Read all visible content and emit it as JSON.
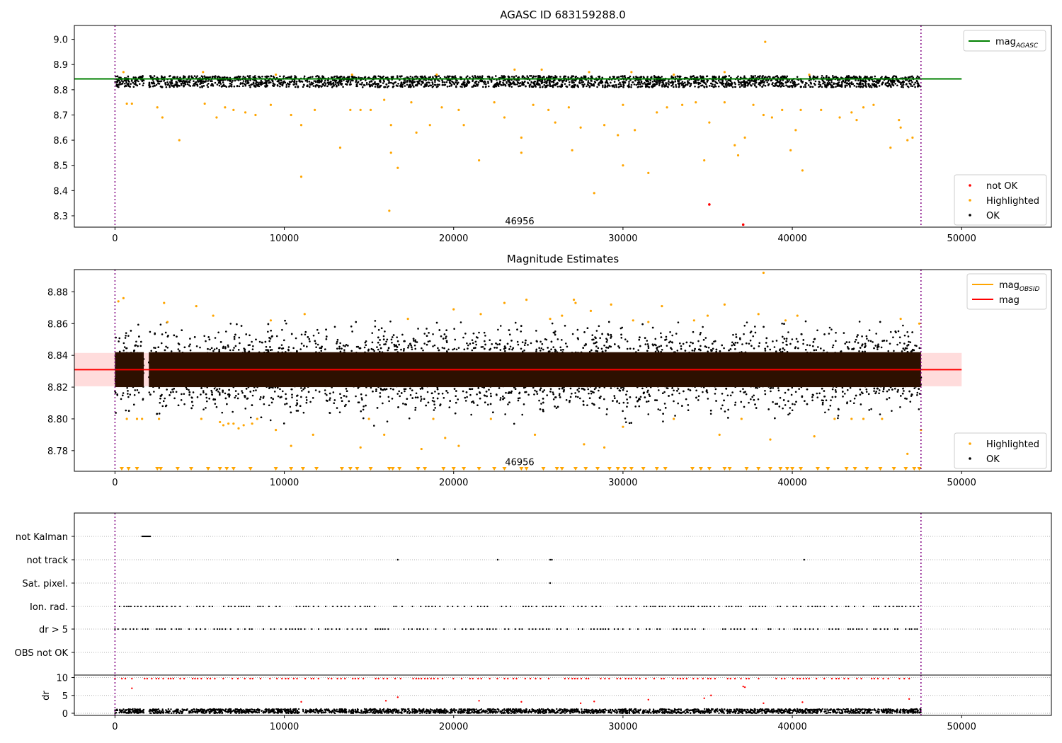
{
  "chart_data": [
    {
      "type": "scatter",
      "title": "AGASC ID 683159288.0",
      "xlim": [
        -2400,
        55300
      ],
      "ylim": [
        8.255,
        9.055
      ],
      "xticks": [
        0,
        10000,
        20000,
        30000,
        40000,
        50000
      ],
      "yticks": [
        8.3,
        8.4,
        8.5,
        8.6,
        8.7,
        8.8,
        8.9,
        9.0
      ],
      "ytick_labels": [
        "8.3",
        "8.4",
        "8.5",
        "8.6",
        "8.7",
        "8.8",
        "8.9",
        "9.0"
      ],
      "annotation": {
        "text": "46956",
        "x": 23900,
        "y": 8.28
      },
      "vlines": [
        0,
        47600
      ],
      "reference_line": {
        "label": "mag",
        "label_sub": "AGASC",
        "y": 8.843,
        "x": [
          -2400,
          50000
        ],
        "color": "#008000"
      },
      "ok_band": {
        "ymin": 8.81,
        "ymax": 8.855,
        "x": [
          0,
          47600
        ],
        "gap": [
          1700,
          2000
        ]
      },
      "highlighted_points": [
        [
          700,
          8.745
        ],
        [
          1000,
          8.745
        ],
        [
          2500,
          8.73
        ],
        [
          2800,
          8.69
        ],
        [
          3800,
          8.6
        ],
        [
          5300,
          8.745
        ],
        [
          6000,
          8.69
        ],
        [
          6500,
          8.73
        ],
        [
          7000,
          8.72
        ],
        [
          7700,
          8.71
        ],
        [
          8300,
          8.7
        ],
        [
          9200,
          8.74
        ],
        [
          10400,
          8.7
        ],
        [
          11000,
          8.66
        ],
        [
          11000,
          8.455
        ],
        [
          11800,
          8.72
        ],
        [
          13300,
          8.57
        ],
        [
          13900,
          8.72
        ],
        [
          14500,
          8.72
        ],
        [
          15100,
          8.72
        ],
        [
          15900,
          8.76
        ],
        [
          16200,
          8.32
        ],
        [
          16300,
          8.66
        ],
        [
          16300,
          8.55
        ],
        [
          16700,
          8.49
        ],
        [
          17500,
          8.75
        ],
        [
          17800,
          8.63
        ],
        [
          18600,
          8.66
        ],
        [
          19300,
          8.73
        ],
        [
          20300,
          8.72
        ],
        [
          20600,
          8.66
        ],
        [
          21500,
          8.52
        ],
        [
          22400,
          8.75
        ],
        [
          23000,
          8.69
        ],
        [
          24000,
          8.61
        ],
        [
          24000,
          8.55
        ],
        [
          24700,
          8.74
        ],
        [
          25600,
          8.72
        ],
        [
          26000,
          8.67
        ],
        [
          26800,
          8.73
        ],
        [
          27000,
          8.56
        ],
        [
          27500,
          8.65
        ],
        [
          28300,
          8.39
        ],
        [
          28900,
          8.66
        ],
        [
          29700,
          8.62
        ],
        [
          30000,
          8.74
        ],
        [
          30000,
          8.5
        ],
        [
          30700,
          8.64
        ],
        [
          31500,
          8.47
        ],
        [
          32000,
          8.71
        ],
        [
          32600,
          8.73
        ],
        [
          33500,
          8.74
        ],
        [
          34300,
          8.75
        ],
        [
          34800,
          8.52
        ],
        [
          35100,
          8.67
        ],
        [
          36000,
          8.75
        ],
        [
          36600,
          8.58
        ],
        [
          36800,
          8.54
        ],
        [
          37200,
          8.61
        ],
        [
          37700,
          8.74
        ],
        [
          38300,
          8.7
        ],
        [
          38400,
          8.99
        ],
        [
          38800,
          8.69
        ],
        [
          39400,
          8.72
        ],
        [
          39900,
          8.56
        ],
        [
          40200,
          8.64
        ],
        [
          40500,
          8.72
        ],
        [
          40600,
          8.48
        ],
        [
          41700,
          8.72
        ],
        [
          42800,
          8.69
        ],
        [
          43500,
          8.71
        ],
        [
          43800,
          8.68
        ],
        [
          44200,
          8.73
        ],
        [
          44800,
          8.74
        ],
        [
          45800,
          8.57
        ],
        [
          46300,
          8.68
        ],
        [
          46400,
          8.65
        ],
        [
          46800,
          8.6
        ],
        [
          47100,
          8.61
        ],
        [
          500,
          8.87
        ],
        [
          5200,
          8.87
        ],
        [
          9500,
          8.86
        ],
        [
          14000,
          8.86
        ],
        [
          19000,
          8.86
        ],
        [
          23600,
          8.88
        ],
        [
          25200,
          8.88
        ],
        [
          28000,
          8.87
        ],
        [
          30500,
          8.87
        ],
        [
          33000,
          8.86
        ],
        [
          36000,
          8.87
        ],
        [
          41000,
          8.86
        ]
      ],
      "not_ok_points": [
        [
          35100,
          8.345
        ],
        [
          37100,
          8.265
        ]
      ],
      "legends": [
        {
          "entries": [
            {
              "label": "mag",
              "sub": "AGASC",
              "marker": "line",
              "color": "#008000"
            }
          ]
        },
        {
          "entries": [
            {
              "label": "not OK",
              "marker": "dot",
              "color": "#ff0000"
            },
            {
              "label": "Highlighted",
              "marker": "dot",
              "color": "#ffa500"
            },
            {
              "label": "OK",
              "marker": "dot",
              "color": "#000000"
            }
          ]
        }
      ]
    },
    {
      "type": "scatter",
      "title": "Magnitude Estimates",
      "xlim": [
        -2400,
        55300
      ],
      "ylim": [
        8.767,
        8.894
      ],
      "xticks": [
        0,
        10000,
        20000,
        30000,
        40000,
        50000
      ],
      "yticks": [
        8.78,
        8.8,
        8.82,
        8.84,
        8.86,
        8.88
      ],
      "ytick_labels": [
        "8.78",
        "8.80",
        "8.82",
        "8.84",
        "8.86",
        "8.88"
      ],
      "annotation": {
        "text": "46956",
        "x": 23900,
        "y": 8.773
      },
      "vlines": [
        0,
        47600
      ],
      "mag_line": {
        "label": "mag",
        "y": 8.831,
        "x": [
          -2400,
          50000
        ],
        "color": "#ff0000"
      },
      "mag_band": {
        "ymin": 8.8205,
        "ymax": 8.8415,
        "x": [
          -2400,
          50000
        ],
        "color": "#ffdcdc"
      },
      "obs_band": {
        "ymin": 8.82,
        "ymax": 8.842,
        "x": [
          0,
          47600
        ],
        "gap": [
          1700,
          2000
        ],
        "color": "#2d1000"
      },
      "ok_spread": {
        "ymin": 8.805,
        "ymax": 8.858
      },
      "highlighted_points": [
        [
          200,
          8.874
        ],
        [
          500,
          8.876
        ],
        [
          700,
          8.8
        ],
        [
          1300,
          8.8
        ],
        [
          1600,
          8.8
        ],
        [
          2600,
          8.8
        ],
        [
          2900,
          8.873
        ],
        [
          3100,
          8.861
        ],
        [
          4800,
          8.871
        ],
        [
          5100,
          8.8
        ],
        [
          5800,
          8.865
        ],
        [
          6200,
          8.798
        ],
        [
          6400,
          8.796
        ],
        [
          6700,
          8.797
        ],
        [
          7000,
          8.797
        ],
        [
          7300,
          8.794
        ],
        [
          7600,
          8.796
        ],
        [
          8100,
          8.797
        ],
        [
          8400,
          8.8
        ],
        [
          9200,
          8.862
        ],
        [
          9500,
          8.793
        ],
        [
          10400,
          8.783
        ],
        [
          11200,
          8.866
        ],
        [
          11700,
          8.79
        ],
        [
          14500,
          8.782
        ],
        [
          15000,
          8.8
        ],
        [
          15900,
          8.79
        ],
        [
          17300,
          8.863
        ],
        [
          18100,
          8.781
        ],
        [
          18800,
          8.8
        ],
        [
          19500,
          8.788
        ],
        [
          20000,
          8.869
        ],
        [
          20300,
          8.783
        ],
        [
          21600,
          8.866
        ],
        [
          22200,
          8.8
        ],
        [
          23000,
          8.873
        ],
        [
          24300,
          8.875
        ],
        [
          24800,
          8.79
        ],
        [
          25700,
          8.863
        ],
        [
          26400,
          8.865
        ],
        [
          27100,
          8.875
        ],
        [
          27200,
          8.873
        ],
        [
          27700,
          8.784
        ],
        [
          28100,
          8.868
        ],
        [
          28900,
          8.782
        ],
        [
          29300,
          8.872
        ],
        [
          30000,
          8.795
        ],
        [
          30600,
          8.862
        ],
        [
          31500,
          8.861
        ],
        [
          32300,
          8.871
        ],
        [
          33000,
          8.8
        ],
        [
          34200,
          8.862
        ],
        [
          35000,
          8.865
        ],
        [
          35700,
          8.79
        ],
        [
          36000,
          8.872
        ],
        [
          37000,
          8.8
        ],
        [
          38000,
          8.866
        ],
        [
          38300,
          8.892
        ],
        [
          38700,
          8.787
        ],
        [
          39600,
          8.862
        ],
        [
          40300,
          8.865
        ],
        [
          41300,
          8.789
        ],
        [
          42500,
          8.8
        ],
        [
          43500,
          8.8
        ],
        [
          44200,
          8.8
        ],
        [
          45300,
          8.8
        ],
        [
          46400,
          8.863
        ],
        [
          46800,
          8.778
        ],
        [
          47500,
          8.86
        ],
        [
          47600,
          8.793
        ]
      ],
      "highlighted_below_axis_x": [
        400,
        800,
        1300,
        2500,
        2700,
        3700,
        4500,
        5500,
        6200,
        6600,
        7000,
        8000,
        9500,
        10400,
        11100,
        11900,
        13400,
        13900,
        14300,
        15100,
        16200,
        16400,
        16800,
        17900,
        18300,
        19400,
        20000,
        20600,
        21500,
        22400,
        23000,
        24000,
        24300,
        25300,
        26100,
        26400,
        27200,
        27800,
        28500,
        29200,
        29700,
        30100,
        30500,
        31200,
        32000,
        32500,
        34100,
        34600,
        35100,
        36000,
        36300,
        37300,
        38000,
        38700,
        39300,
        39700,
        40000,
        40500,
        41500,
        42100,
        43200,
        43700,
        44400,
        45200,
        46000,
        46700,
        47200,
        47500
      ],
      "legends": [
        {
          "entries": [
            {
              "label": "mag",
              "sub": "OBSID",
              "marker": "line",
              "color": "#ffa500"
            },
            {
              "label": "mag",
              "marker": "line",
              "color": "#ff0000"
            }
          ]
        },
        {
          "entries": [
            {
              "label": "Highlighted",
              "marker": "dot",
              "color": "#ffa500"
            },
            {
              "label": "OK",
              "marker": "dot",
              "color": "#000000"
            }
          ]
        }
      ]
    },
    {
      "type": "scatter",
      "xlim": [
        -2400,
        55300
      ],
      "flag_rows": [
        "not Kalman",
        "not track",
        "Sat. pixel.",
        "Ion. rad.",
        "dr > 5",
        "OBS not OK"
      ],
      "flag_points": {
        "not Kalman": [
          [
            1600,
            2100
          ]
        ],
        "not track": [
          16700,
          22600,
          25700,
          25800,
          40700
        ],
        "Sat. pixel.": [
          25700
        ],
        "Ion. rad.": "periodic",
        "dr > 5": "periodic",
        "OBS not OK": []
      },
      "vlines": [
        0,
        47600
      ]
    },
    {
      "type": "scatter",
      "xlim": [
        -2400,
        55300
      ],
      "ylim": [
        -0.6,
        10.7
      ],
      "ylabel": "dr",
      "yticks": [
        0,
        5,
        10
      ],
      "ytick_labels": [
        "0",
        "5",
        "10"
      ],
      "xticks": [
        0,
        10000,
        20000,
        30000,
        40000,
        50000
      ],
      "ok_band": {
        "ymin": 0,
        "ymax": 1.2
      },
      "red_points": [
        [
          1000,
          7
        ],
        [
          11000,
          3.2
        ],
        [
          16000,
          3.5
        ],
        [
          16700,
          4.5
        ],
        [
          21500,
          3.5
        ],
        [
          24000,
          3.2
        ],
        [
          27500,
          2.8
        ],
        [
          28300,
          3.3
        ],
        [
          31500,
          3.8
        ],
        [
          34800,
          4.2
        ],
        [
          35200,
          5
        ],
        [
          37100,
          7.5
        ],
        [
          37200,
          7.3
        ],
        [
          38300,
          2.8
        ],
        [
          40600,
          3.1
        ],
        [
          46900,
          4
        ]
      ],
      "vlines": [
        0,
        47600
      ]
    }
  ],
  "colors": {
    "ok": "#000000",
    "highlighted": "#ffa500",
    "not_ok": "#ff0000",
    "agasc_line": "#008000",
    "vline": "#800080"
  }
}
